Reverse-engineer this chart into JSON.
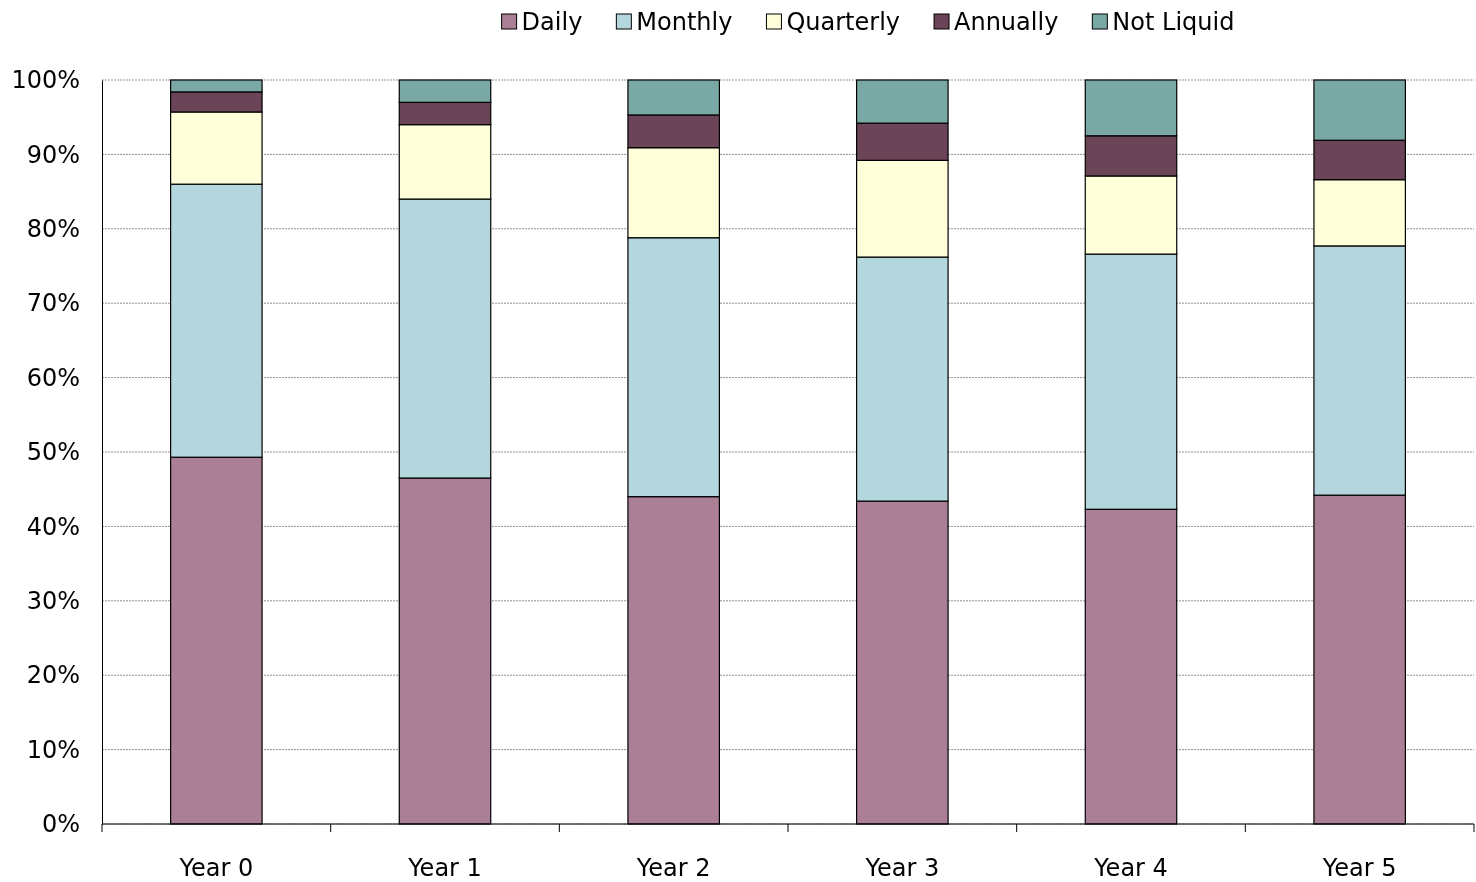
{
  "chart_data": {
    "type": "bar",
    "stacked": true,
    "categories": [
      "Year 0",
      "Year 1",
      "Year 2",
      "Year 3",
      "Year 4",
      "Year 5"
    ],
    "series": [
      {
        "name": "Daily",
        "color": "#ab7f96",
        "values": [
          49.3,
          46.5,
          44.0,
          43.4,
          42.3,
          44.2
        ]
      },
      {
        "name": "Monthly",
        "color": "#b4d7dd",
        "values": [
          36.7,
          37.5,
          34.8,
          32.8,
          34.3,
          33.5
        ]
      },
      {
        "name": "Quarterly",
        "color": "#ffffd9",
        "values": [
          9.7,
          10.0,
          12.1,
          13.0,
          10.5,
          8.9
        ]
      },
      {
        "name": "Annually",
        "color": "#6b4457",
        "values": [
          2.7,
          3.0,
          4.4,
          5.0,
          5.4,
          5.3
        ]
      },
      {
        "name": "Not Liquid",
        "color": "#7aa8a5",
        "values": [
          1.6,
          3.0,
          4.7,
          5.8,
          7.5,
          8.1
        ]
      }
    ],
    "ylim": [
      0,
      100
    ],
    "yticks": [
      {
        "value": 0,
        "label": "0%"
      },
      {
        "value": 10,
        "label": "10%"
      },
      {
        "value": 20,
        "label": "20%"
      },
      {
        "value": 30,
        "label": "30%"
      },
      {
        "value": 40,
        "label": "40%"
      },
      {
        "value": 50,
        "label": "50%"
      },
      {
        "value": 60,
        "label": "60%"
      },
      {
        "value": 70,
        "label": "70%"
      },
      {
        "value": 80,
        "label": "80%"
      },
      {
        "value": 90,
        "label": "90%"
      },
      {
        "value": 100,
        "label": "100%"
      }
    ],
    "grid": "y",
    "legend": "top"
  }
}
